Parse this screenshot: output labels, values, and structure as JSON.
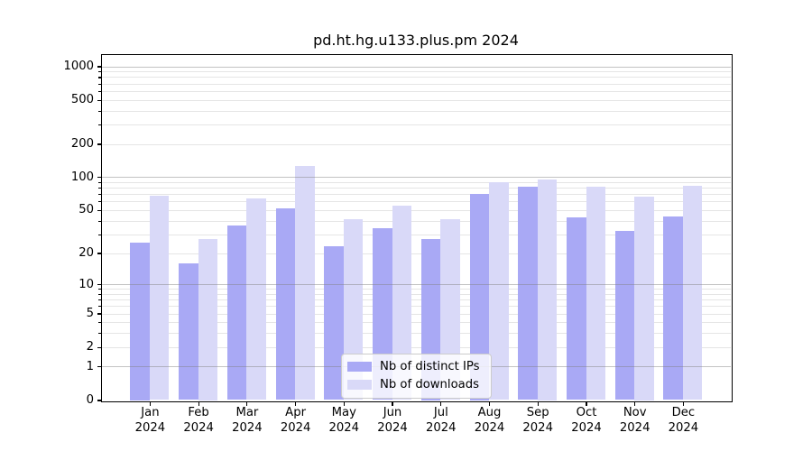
{
  "title": "pd.ht.hg.u133.plus.pm 2024",
  "chart_data": {
    "type": "bar",
    "title": "pd.ht.hg.u133.plus.pm 2024",
    "scale": "log1p",
    "months": [
      "Jan",
      "Feb",
      "Mar",
      "Apr",
      "May",
      "Jun",
      "Jul",
      "Aug",
      "Sep",
      "Oct",
      "Nov",
      "Dec"
    ],
    "year": "2024",
    "series": [
      {
        "name": "Nb of distinct IPs",
        "color": "#a9a9f5",
        "values": [
          25,
          16,
          36,
          52,
          23,
          34,
          27,
          71,
          82,
          43,
          32,
          44
        ]
      },
      {
        "name": "Nb of downloads",
        "color": "#d9d9f8",
        "values": [
          68,
          27,
          64,
          127,
          41,
          55,
          41,
          90,
          96,
          82,
          67,
          83
        ]
      }
    ],
    "y_ticks": [
      0,
      1,
      2,
      5,
      10,
      20,
      50,
      100,
      200,
      500,
      1000
    ],
    "ylim": [
      0,
      1276
    ],
    "xlabel": "",
    "ylabel": "",
    "grid": true,
    "legend_position": "lower center"
  }
}
